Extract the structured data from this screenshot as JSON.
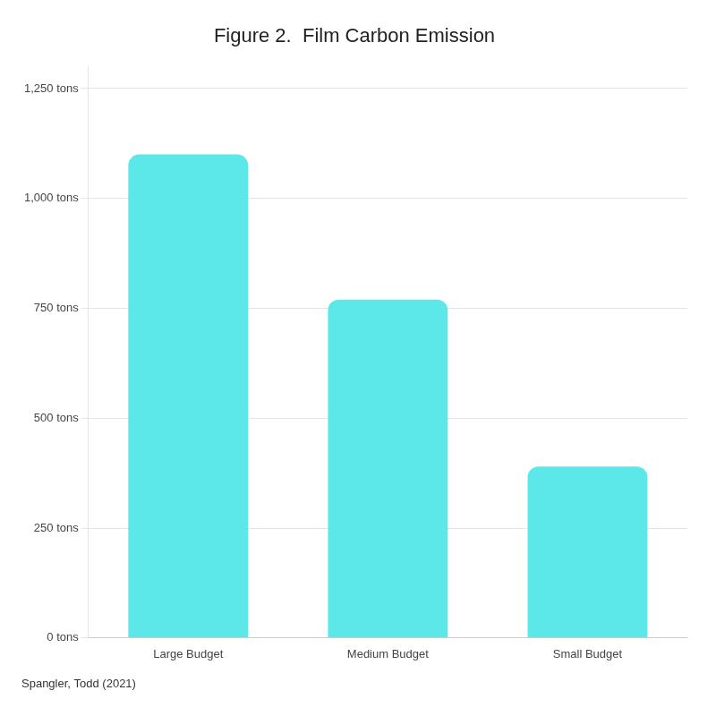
{
  "chart_data": {
    "type": "bar",
    "title": "Figure 2.  Film Carbon Emission",
    "caption": "Spangler, Todd (2021)",
    "categories": [
      "Large Budget",
      "Medium Budget",
      "Small Budget"
    ],
    "values": [
      1100,
      770,
      390
    ],
    "color": "#5CE8E8",
    "ylim": [
      0,
      1300
    ],
    "yticks": [
      {
        "value": 0,
        "label": "0 tons"
      },
      {
        "value": 250,
        "label": "250 tons"
      },
      {
        "value": 500,
        "label": "500 tons"
      },
      {
        "value": 750,
        "label": "750 tons"
      },
      {
        "value": 1000,
        "label": "1,000 tons"
      },
      {
        "value": 1250,
        "label": "1,250 tons"
      }
    ],
    "grid": true
  }
}
